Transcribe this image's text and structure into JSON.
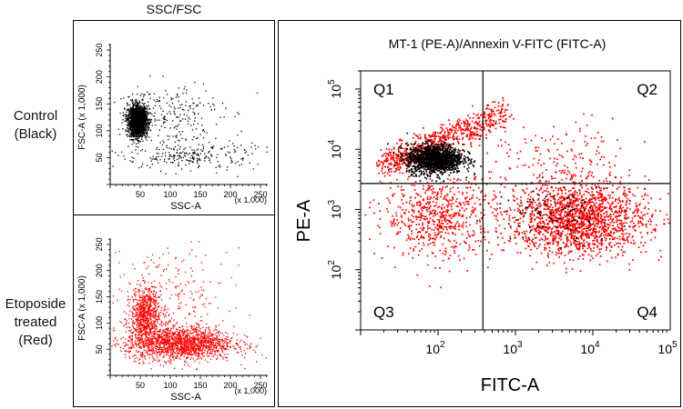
{
  "figure": {
    "left_header": "SSC/FSC",
    "conditions": [
      {
        "lines": [
          "Control",
          "(Black)"
        ],
        "color": "#000000"
      },
      {
        "lines": [
          "Etoposide",
          "treated",
          "(Red)"
        ],
        "color": "#ff0000"
      }
    ]
  },
  "chart_data": [
    {
      "type": "scatter",
      "panel": "control",
      "xlabel": "SSC-A",
      "ylabel": "FSC-A",
      "x_unit": "(x 1,000)",
      "y_unit": "(x 1,000)",
      "xlim": [
        0,
        262
      ],
      "ylim": [
        0,
        262
      ],
      "xticks": [
        50,
        100,
        150,
        200,
        250
      ],
      "yticks": [
        50,
        100,
        150,
        200,
        250
      ],
      "series": [
        {
          "color": "#000000",
          "clusters": [
            {
              "x": 45,
              "y": 118,
              "sx": 8,
              "sy": 14,
              "count": 1900
            },
            {
              "x": 95,
              "y": 135,
              "sx": 45,
              "sy": 30,
              "count": 230
            },
            {
              "x": 130,
              "y": 55,
              "sx": 55,
              "sy": 14,
              "count": 260
            }
          ]
        }
      ]
    },
    {
      "type": "scatter",
      "panel": "etoposide",
      "xlabel": "SSC-A",
      "ylabel": "FSC-A",
      "x_unit": "(x 1,000)",
      "y_unit": "(x 1,000)",
      "xlim": [
        0,
        262
      ],
      "ylim": [
        0,
        262
      ],
      "xticks": [
        50,
        100,
        150,
        200,
        250
      ],
      "yticks": [
        50,
        100,
        150,
        200,
        250
      ],
      "series": [
        {
          "color": "#ff0000",
          "clusters": [
            {
              "x": 58,
              "y": 118,
              "sx": 12,
              "sy": 25,
              "count": 700
            },
            {
              "x": 115,
              "y": 62,
              "sx": 45,
              "sy": 16,
              "count": 1700
            },
            {
              "x": 95,
              "y": 150,
              "sx": 50,
              "sy": 45,
              "count": 250
            }
          ]
        }
      ]
    },
    {
      "type": "scatter",
      "panel": "annexin",
      "title": "MT-1 (PE-A)/Annexin V-FITC (FITC-A)",
      "xlabel": "FITC-A",
      "ylabel": "PE-A",
      "x_scale": "log",
      "y_scale": "log",
      "xlim": [
        10,
        100000
      ],
      "ylim": [
        10,
        200000
      ],
      "xticks": [
        {
          "base": "10",
          "exp": "2",
          "value": 100
        },
        {
          "base": "10",
          "exp": "3",
          "value": 1000
        },
        {
          "base": "10",
          "exp": "4",
          "value": 10000
        },
        {
          "base": "10",
          "exp": "5",
          "value": 100000
        }
      ],
      "yticks": [
        {
          "base": "10",
          "exp": "2",
          "value": 100
        },
        {
          "base": "10",
          "exp": "3",
          "value": 1000
        },
        {
          "base": "10",
          "exp": "4",
          "value": 10000
        },
        {
          "base": "10",
          "exp": "5",
          "value": 100000
        }
      ],
      "gates": {
        "x": 380,
        "y": 2700
      },
      "quadrants": [
        "Q1",
        "Q2",
        "Q3",
        "Q4"
      ],
      "series": [
        {
          "color": "#ff0000",
          "clusters": [
            {
              "lx": 2.45,
              "ly": 4.05,
              "slx": 0.28,
              "sly": 0.28,
              "count": 700,
              "mode": "diag"
            },
            {
              "lx": 2.0,
              "ly": 2.9,
              "slx": 0.35,
              "sly": 0.35,
              "count": 650
            },
            {
              "lx": 3.8,
              "ly": 2.85,
              "slx": 0.45,
              "sly": 0.3,
              "count": 1700
            },
            {
              "lx": 3.6,
              "ly": 3.75,
              "slx": 0.45,
              "sly": 0.35,
              "count": 180
            }
          ]
        },
        {
          "color": "#000000",
          "clusters": [
            {
              "lx": 1.95,
              "ly": 3.85,
              "slx": 0.18,
              "sly": 0.12,
              "count": 1400
            },
            {
              "lx": 3.5,
              "ly": 2.9,
              "slx": 0.4,
              "sly": 0.25,
              "count": 110
            }
          ]
        }
      ]
    }
  ]
}
